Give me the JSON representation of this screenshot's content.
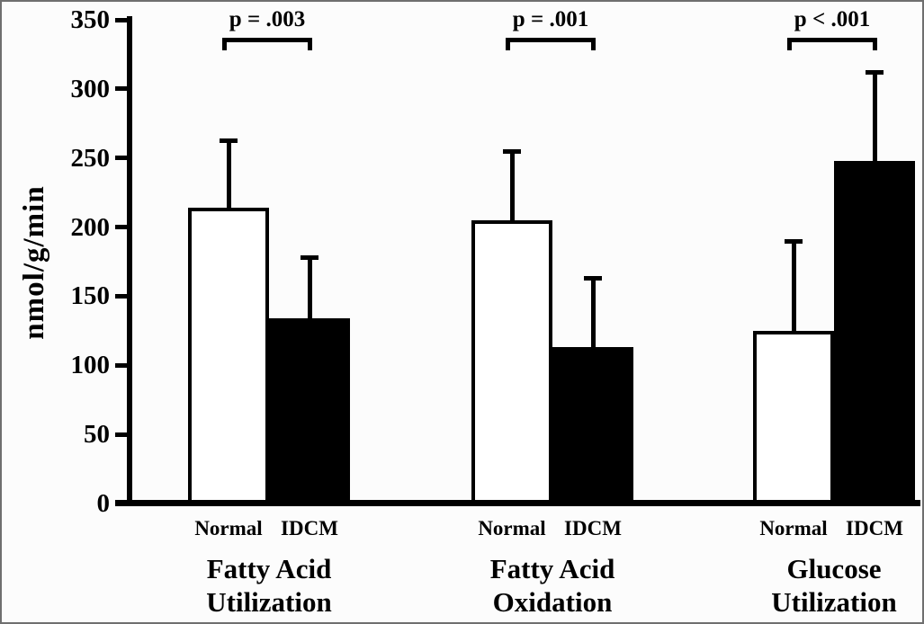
{
  "chart_data": {
    "type": "bar",
    "title": "",
    "xlabel": "",
    "ylabel": "nmol/g/min",
    "ylim": [
      0,
      350
    ],
    "yticks": [
      0,
      50,
      100,
      150,
      200,
      250,
      300,
      350
    ],
    "grid": false,
    "legend": "none (bars labeled directly below axis)",
    "series_names": [
      "Normal",
      "IDCM"
    ],
    "groups": [
      {
        "title_lines": [
          "Fatty Acid",
          "Utilization"
        ],
        "significance": "p = .003",
        "bars": [
          {
            "label": "Normal",
            "value": 214,
            "error_sd": 49,
            "fill": "#ffffff"
          },
          {
            "label": "IDCM",
            "value": 134,
            "error_sd": 44,
            "fill": "#000000"
          }
        ]
      },
      {
        "title_lines": [
          "Fatty Acid",
          "Oxidation"
        ],
        "significance": "p = .001",
        "bars": [
          {
            "label": "Normal",
            "value": 205,
            "error_sd": 50,
            "fill": "#ffffff"
          },
          {
            "label": "IDCM",
            "value": 113,
            "error_sd": 50,
            "fill": "#000000"
          }
        ]
      },
      {
        "title_lines": [
          "Glucose",
          "Utilization"
        ],
        "significance": "p < .001",
        "bars": [
          {
            "label": "Normal",
            "value": 125,
            "error_sd": 65,
            "fill": "#ffffff"
          },
          {
            "label": "IDCM",
            "value": 248,
            "error_sd": 64,
            "fill": "#000000"
          }
        ]
      }
    ],
    "colors": {
      "ink": "#000000",
      "normal_bar_fill": "#ffffff",
      "idcm_bar_fill": "#000000",
      "background": "#fcfcfc",
      "frame_border": "#6f6f6f"
    }
  }
}
